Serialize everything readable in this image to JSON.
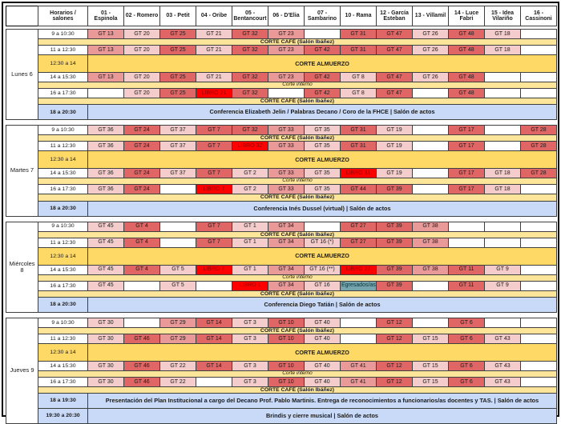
{
  "header": {
    "horarios_label": "Horarios / salones",
    "rooms": [
      "01 - Espinola",
      "02 - Romero",
      "03 - Petit",
      "04 - Oribe",
      "05 - Bentancourt",
      "06 - D'Elia",
      "07 - Sambarino",
      "10 - Rama",
      "12 - García Esteban",
      "13 - Villamil",
      "14 - Luce Fabri",
      "15 - Idea Vilariño",
      "16 - Cassinoni"
    ]
  },
  "bands": {
    "cafe": "CORTE CAFÉ (Salón Ibáñez)",
    "almuerzo": "CORTE ALMUERZO",
    "interno": "Corte interno"
  },
  "colors": {
    "light_pink": "#f4cccc",
    "medium_pink": "#ea9999",
    "dark_pink": "#e06666",
    "libro_red": "#ff0000",
    "egresados_teal": "#76a5af",
    "cafe_yellow": "#ffe599",
    "almuerzo_yellow": "#ffd966",
    "event_blue": "#c9daf8"
  },
  "days": [
    {
      "label": "Lunes 6",
      "rows": [
        {
          "type": "slots",
          "time": "9 a 10:30",
          "cells": [
            [
              "GT 13",
              "m"
            ],
            [
              "GT 20",
              "l"
            ],
            [
              "GT 25",
              "d"
            ],
            [
              "GT 21",
              "l"
            ],
            [
              "GT 32",
              "d"
            ],
            [
              "GT 23",
              "m"
            ],
            null,
            [
              "GT 31",
              "d"
            ],
            [
              "GT 47",
              "d"
            ],
            [
              "GT 26",
              "l"
            ],
            [
              "GT 48",
              "d"
            ],
            [
              "GT 18",
              "l"
            ],
            null
          ]
        },
        {
          "type": "cafe"
        },
        {
          "type": "slots",
          "time": "11 a 12:30",
          "cells": [
            [
              "GT 13",
              "m"
            ],
            [
              "GT 20",
              "l"
            ],
            [
              "GT 25",
              "d"
            ],
            [
              "GT 21",
              "l"
            ],
            [
              "GT 32",
              "d"
            ],
            [
              "GT 23",
              "m"
            ],
            [
              "GT 42",
              "d"
            ],
            [
              "GT 31",
              "d"
            ],
            [
              "GT 47",
              "d"
            ],
            [
              "GT 26",
              "l"
            ],
            [
              "GT 48",
              "d"
            ],
            [
              "GT 18",
              "l"
            ],
            null
          ]
        },
        {
          "type": "almuerzo",
          "time": "12:30 a 14"
        },
        {
          "type": "slots",
          "time": "14 a 15:30",
          "cells": [
            [
              "GT 13",
              "m"
            ],
            [
              "GT 20",
              "l"
            ],
            [
              "GT 25",
              "d"
            ],
            [
              "GT 21",
              "l"
            ],
            [
              "GT 32",
              "d"
            ],
            [
              "GT 23",
              "m"
            ],
            [
              "GT 42",
              "d"
            ],
            [
              "GT 8",
              "l"
            ],
            [
              "GT 47",
              "d"
            ],
            [
              "GT 26",
              "l"
            ],
            [
              "GT 48",
              "d"
            ],
            null,
            null
          ]
        },
        {
          "type": "interno"
        },
        {
          "type": "slots",
          "time": "16 a 17:30",
          "cells": [
            null,
            [
              "GT 20",
              "l"
            ],
            [
              "GT 25",
              "d"
            ],
            [
              "LIBRO 21",
              "r"
            ],
            [
              "GT 32",
              "d"
            ],
            null,
            [
              "GT 42",
              "d"
            ],
            [
              "GT 8",
              "l"
            ],
            [
              "GT 47",
              "d"
            ],
            null,
            [
              "GT 48",
              "d"
            ],
            null,
            null
          ]
        },
        {
          "type": "cafe"
        },
        {
          "type": "event",
          "time": "18 a 20:30",
          "text": "Conferencia Elizabeth Jelin / Palabras Decano / Coro de la FHCE  |  Salón de actos"
        }
      ]
    },
    {
      "label": "Martes 7",
      "rows": [
        {
          "type": "slots",
          "time": "9 a 10:30",
          "cells": [
            [
              "GT 36",
              "l"
            ],
            [
              "GT 24",
              "d"
            ],
            [
              "GT 37",
              "l"
            ],
            [
              "GT 7",
              "d"
            ],
            [
              "GT 32",
              "d"
            ],
            [
              "GT 33",
              "m"
            ],
            [
              "GT 35",
              "l"
            ],
            [
              "GT 31",
              "d"
            ],
            [
              "GT 19",
              "l"
            ],
            null,
            [
              "GT 17",
              "d"
            ],
            null,
            [
              "GT 28",
              "d"
            ]
          ]
        },
        {
          "type": "cafe"
        },
        {
          "type": "slots",
          "time": "11 a 12:30",
          "cells": [
            [
              "GT 36",
              "l"
            ],
            [
              "GT 24",
              "d"
            ],
            [
              "GT 37",
              "l"
            ],
            [
              "GT 7",
              "d"
            ],
            [
              "LIBRO 32",
              "r"
            ],
            [
              "GT 33",
              "m"
            ],
            [
              "GT 35",
              "l"
            ],
            [
              "GT 31",
              "d"
            ],
            [
              "GT 19",
              "l"
            ],
            null,
            [
              "GT 17",
              "d"
            ],
            null,
            [
              "GT 28",
              "d"
            ]
          ]
        },
        {
          "type": "almuerzo",
          "time": "12:30 a 14"
        },
        {
          "type": "slots",
          "time": "14 a 15:30",
          "cells": [
            [
              "GT 36",
              "l"
            ],
            [
              "GT 24",
              "d"
            ],
            [
              "GT 37",
              "l"
            ],
            [
              "GT 7",
              "d"
            ],
            [
              "GT 2",
              "l"
            ],
            [
              "GT 33",
              "m"
            ],
            [
              "GT 35",
              "l"
            ],
            [
              "LIBRO 31",
              "r"
            ],
            [
              "GT 19",
              "l"
            ],
            null,
            [
              "GT 17",
              "d"
            ],
            [
              "GT 18",
              "l"
            ],
            [
              "GT 28",
              "d"
            ]
          ]
        },
        {
          "type": "interno"
        },
        {
          "type": "slots",
          "time": "16 a 17:30",
          "cells": [
            [
              "GT 36",
              "l"
            ],
            [
              "GT 24",
              "d"
            ],
            null,
            [
              "LIBRO 7",
              "r"
            ],
            [
              "GT 2",
              "l"
            ],
            [
              "GT 33",
              "m"
            ],
            [
              "GT 35",
              "l"
            ],
            [
              "GT 44",
              "d"
            ],
            [
              "GT 39",
              "d"
            ],
            null,
            [
              "GT 17",
              "d"
            ],
            [
              "GT 18",
              "l"
            ],
            null
          ]
        },
        {
          "type": "cafe"
        },
        {
          "type": "event",
          "time": "18 a 20:30",
          "text": "Conferencia Inés Dussel (virtual)  |  Salón de actos"
        }
      ]
    },
    {
      "label": "Miércoles 8",
      "rows": [
        {
          "type": "slots",
          "time": "9 a 10:30",
          "cells": [
            [
              "GT 45",
              "l"
            ],
            [
              "GT 4",
              "d"
            ],
            null,
            [
              "GT 7",
              "d"
            ],
            [
              "GT 1",
              "l"
            ],
            [
              "GT 34",
              "m"
            ],
            null,
            [
              "GT 27",
              "d"
            ],
            [
              "GT 39",
              "d"
            ],
            [
              "GT 38",
              "m"
            ],
            null,
            null,
            null
          ]
        },
        {
          "type": "cafe"
        },
        {
          "type": "slots",
          "time": "11 a 12:30",
          "cells": [
            [
              "GT 45",
              "l"
            ],
            [
              "GT 4",
              "d"
            ],
            null,
            [
              "GT 7",
              "d"
            ],
            [
              "GT 1",
              "l"
            ],
            [
              "GT 34",
              "m"
            ],
            [
              "GT 16 (*)",
              "l"
            ],
            [
              "GT 27",
              "d"
            ],
            [
              "GT 39",
              "d"
            ],
            [
              "GT 38",
              "m"
            ],
            null,
            null,
            null
          ]
        },
        {
          "type": "almuerzo",
          "time": "12:30 a 14"
        },
        {
          "type": "slots",
          "time": "14 a 15:30",
          "cells": [
            [
              "GT 45",
              "l"
            ],
            [
              "GT 4",
              "d"
            ],
            [
              "GT 5",
              "l"
            ],
            [
              "LIBRO 7",
              "r"
            ],
            [
              "GT 1",
              "l"
            ],
            [
              "GT 34",
              "m"
            ],
            [
              "GT 16 (**)",
              "l"
            ],
            [
              "LIBRO 27",
              "r"
            ],
            [
              "GT 39",
              "d"
            ],
            [
              "GT 38",
              "m"
            ],
            [
              "GT 11",
              "d"
            ],
            [
              "GT 9",
              "l"
            ],
            null
          ]
        },
        {
          "type": "interno"
        },
        {
          "type": "slots",
          "time": "16 a 17:30",
          "cells": [
            [
              "GT 45",
              "l"
            ],
            null,
            [
              "GT 5",
              "l"
            ],
            null,
            [
              "LIBRO 1",
              "r"
            ],
            [
              "GT 34",
              "m"
            ],
            [
              "GT 16",
              "l"
            ],
            [
              "Egresados/as",
              "t"
            ],
            [
              "GT 39",
              "d"
            ],
            null,
            [
              "GT 11",
              "d"
            ],
            [
              "GT 9",
              "l"
            ],
            null
          ]
        },
        {
          "type": "cafe"
        },
        {
          "type": "event",
          "time": "18 a 20:30",
          "text": "Conferencia Diego Tatián  |  Salón de actos"
        }
      ]
    },
    {
      "label": "Jueves 9",
      "rows": [
        {
          "type": "slots",
          "time": "9 a 10:30",
          "cells": [
            [
              "GT 30",
              "l"
            ],
            null,
            [
              "GT 29",
              "m"
            ],
            [
              "GT 14",
              "d"
            ],
            [
              "GT 3",
              "l"
            ],
            [
              "GT 10",
              "d"
            ],
            [
              "GT 40",
              "l"
            ],
            null,
            [
              "GT 12",
              "d"
            ],
            null,
            [
              "GT 6",
              "d"
            ],
            null,
            null
          ]
        },
        {
          "type": "cafe"
        },
        {
          "type": "slots",
          "time": "11 a 12:30",
          "cells": [
            [
              "GT 30",
              "l"
            ],
            [
              "GT 46",
              "d"
            ],
            [
              "GT 29",
              "m"
            ],
            [
              "GT 14",
              "d"
            ],
            [
              "GT 3",
              "l"
            ],
            [
              "GT 10",
              "d"
            ],
            [
              "GT 40",
              "l"
            ],
            null,
            [
              "GT 12",
              "d"
            ],
            [
              "GT 15",
              "l"
            ],
            [
              "GT 6",
              "d"
            ],
            [
              "GT 43",
              "l"
            ],
            null
          ]
        },
        {
          "type": "almuerzo",
          "time": "12:30 a 14"
        },
        {
          "type": "slots",
          "time": "14 a 15:30",
          "cells": [
            [
              "GT 30",
              "l"
            ],
            [
              "GT 46",
              "d"
            ],
            [
              "GT 22",
              "l"
            ],
            [
              "GT 14",
              "d"
            ],
            [
              "GT 3",
              "l"
            ],
            [
              "GT 10",
              "d"
            ],
            [
              "GT 40",
              "l"
            ],
            [
              "GT 41",
              "m"
            ],
            [
              "GT 12",
              "d"
            ],
            [
              "GT 15",
              "l"
            ],
            [
              "GT 6",
              "d"
            ],
            [
              "GT 43",
              "l"
            ],
            null
          ]
        },
        {
          "type": "interno"
        },
        {
          "type": "slots",
          "time": "16 a 17:30",
          "cells": [
            [
              "GT 30",
              "l"
            ],
            [
              "GT 46",
              "d"
            ],
            [
              "GT 22",
              "l"
            ],
            null,
            [
              "GT 3",
              "l"
            ],
            [
              "GT 10",
              "d"
            ],
            [
              "GT 40",
              "l"
            ],
            [
              "GT 41",
              "m"
            ],
            [
              "GT 12",
              "d"
            ],
            [
              "GT 15",
              "l"
            ],
            [
              "GT 6",
              "d"
            ],
            [
              "GT 43",
              "l"
            ],
            null
          ]
        },
        {
          "type": "cafe"
        },
        {
          "type": "event",
          "time": "18 a 19:30",
          "text": "Presentación del Plan Institucional a cargo del Decano Prof. Pablo Martinis. Entrega de reconocimientos a funcionarios/as docentes y TAS.   |   Salón de actos"
        },
        {
          "type": "event",
          "time": "19:30 a 20:30",
          "text": "Brindis y cierre musical  |  Salón de actos"
        }
      ]
    }
  ]
}
